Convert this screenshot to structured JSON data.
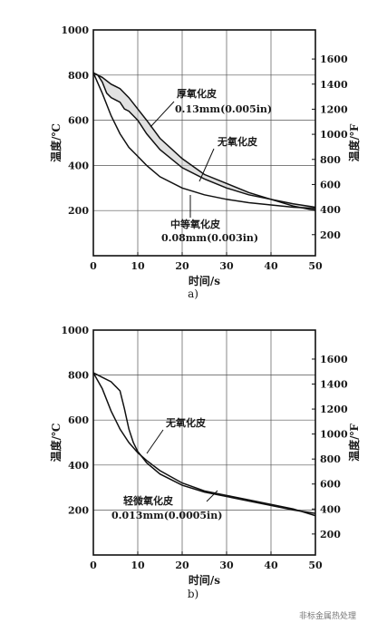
{
  "chart_data": [
    {
      "type": "line",
      "panel_label": "a)",
      "xlabel": "时间/s",
      "ylabel_left": "温度/℃",
      "ylabel_right": "温度/℉",
      "xlim": [
        0,
        50
      ],
      "ylim": [
        0,
        1000
      ],
      "xticks": [
        0,
        10,
        20,
        30,
        40,
        50
      ],
      "yticks_left": [
        200,
        400,
        600,
        800,
        1000
      ],
      "yticks_right": [
        200,
        400,
        600,
        800,
        1000,
        1200,
        1400,
        1600
      ],
      "grid": true,
      "series": [
        {
          "name": "厚氧化皮",
          "sublabel": "0.13mm(0.005in)",
          "x": [
            0,
            1,
            2,
            3,
            4,
            5,
            6,
            7,
            8,
            9,
            10,
            12,
            15,
            20,
            25,
            30,
            35,
            40,
            45,
            50
          ],
          "y": [
            810,
            800,
            770,
            720,
            700,
            690,
            680,
            650,
            640,
            620,
            600,
            540,
            470,
            390,
            340,
            300,
            270,
            250,
            230,
            215
          ]
        },
        {
          "name": "无氧化皮",
          "x": [
            0,
            2,
            4,
            6,
            8,
            10,
            12,
            15,
            20,
            25,
            30,
            35,
            40,
            45,
            50
          ],
          "y": [
            810,
            720,
            620,
            540,
            480,
            440,
            400,
            350,
            300,
            270,
            250,
            235,
            225,
            215,
            210
          ]
        },
        {
          "name": "中等氧化皮",
          "sublabel": "0.08mm(0.003in)",
          "x": [
            0,
            2,
            4,
            6,
            8,
            10,
            12,
            15,
            20,
            25,
            30,
            35,
            40,
            45,
            50
          ],
          "y": [
            810,
            790,
            760,
            740,
            700,
            650,
            600,
            520,
            430,
            360,
            320,
            280,
            250,
            220,
            200
          ]
        }
      ],
      "annotations": [
        {
          "text": "厚氧化皮",
          "for": "厚氧化皮"
        },
        {
          "text": "0.13mm(0.005in)",
          "for": "厚氧化皮"
        },
        {
          "text": "无氧化皮",
          "for": "无氧化皮"
        },
        {
          "text": "中等氧化皮",
          "for": "中等氧化皮"
        },
        {
          "text": "0.08mm(0.003in)",
          "for": "中等氧化皮"
        }
      ]
    },
    {
      "type": "line",
      "panel_label": "b)",
      "xlabel": "时间/s",
      "ylabel_left": "温度/℃",
      "ylabel_right": "温度/℉",
      "xlim": [
        0,
        50
      ],
      "ylim": [
        0,
        1000
      ],
      "xticks": [
        0,
        10,
        20,
        30,
        40,
        50
      ],
      "yticks_left": [
        200,
        400,
        600,
        800,
        1000
      ],
      "yticks_right": [
        200,
        400,
        600,
        800,
        1000,
        1200,
        1400,
        1600
      ],
      "grid": true,
      "series": [
        {
          "name": "无氧化皮",
          "x": [
            0,
            2,
            4,
            6,
            8,
            10,
            12,
            15,
            20,
            25,
            30,
            35,
            40,
            45,
            50
          ],
          "y": [
            810,
            740,
            640,
            560,
            500,
            455,
            420,
            375,
            320,
            285,
            265,
            245,
            225,
            205,
            175
          ]
        },
        {
          "name": "轻微氧化皮",
          "sublabel": "0.013mm(0.0005in)",
          "x": [
            0,
            2,
            4,
            6,
            7,
            8,
            9,
            10,
            12,
            15,
            20,
            25,
            30,
            35,
            40,
            45,
            50
          ],
          "y": [
            810,
            790,
            770,
            730,
            650,
            560,
            500,
            460,
            410,
            360,
            310,
            280,
            260,
            240,
            220,
            200,
            185
          ]
        }
      ],
      "annotations": [
        {
          "text": "无氧化皮",
          "for": "无氧化皮"
        },
        {
          "text": "轻微氧化皮",
          "for": "轻微氧化皮"
        },
        {
          "text": "0.013mm(0.0005in)",
          "for": "轻微氧化皮"
        }
      ]
    }
  ],
  "watermark": "非标金属热处理"
}
